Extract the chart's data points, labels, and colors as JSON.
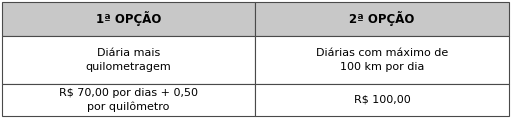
{
  "header": [
    "1ª OPÇÃO",
    "2ª OPÇÃO"
  ],
  "row1_col1": "Diária mais\nquilometragem",
  "row1_col2": "Diárias com máximo de\n100 km por dia",
  "row2_col1": "R$ 70,00 por dias + 0,50\npor quilômetro",
  "row2_col2": "R$ 100,00",
  "header_bg": "#c8c8c8",
  "cell_bg": "#ffffff",
  "border_color": "#4a4a4a",
  "header_fontsize": 8.5,
  "cell_fontsize": 8.0,
  "header_font_weight": "bold",
  "cell_font_weight": "normal",
  "fig_width": 5.11,
  "fig_height": 1.18,
  "dpi": 100
}
